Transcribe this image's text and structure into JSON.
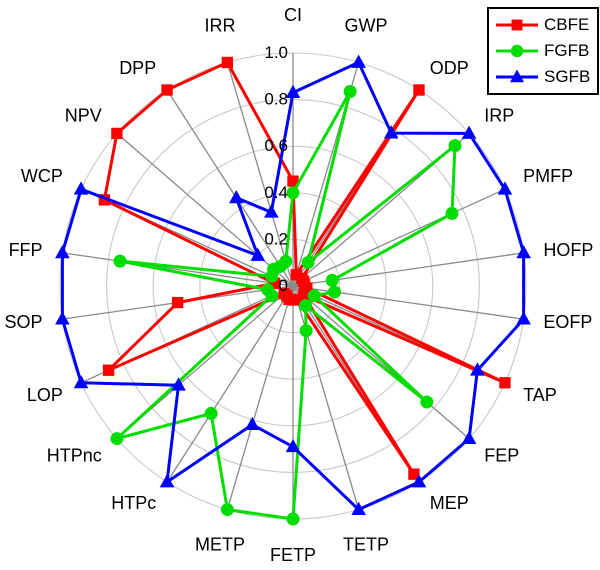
{
  "figure": {
    "background": "#ffffff",
    "grid_color": "#c9c9c9",
    "spoke_color": "#8a8a8a",
    "text_color": "#000000"
  },
  "legend": {
    "position": "top-right",
    "entries": [
      {
        "label": "CBFE",
        "color": "#ff0000",
        "marker": "square"
      },
      {
        "label": "FGFB",
        "color": "#00dd00",
        "marker": "circle"
      },
      {
        "label": "SGFB",
        "color": "#0000ff",
        "marker": "triangle"
      }
    ]
  },
  "chart_data": {
    "type": "radar",
    "title": "",
    "categories": [
      "CI",
      "GWP",
      "ODP",
      "IRP",
      "PMFP",
      "HOFP",
      "EOFP",
      "TAP",
      "FEP",
      "MEP",
      "TETP",
      "FETP",
      "METP",
      "HTPc",
      "HTPnc",
      "LOP",
      "SOP",
      "FFP",
      "WCP",
      "NPV",
      "DPP",
      "IRR"
    ],
    "series": [
      {
        "name": "CBFE",
        "marker": "square",
        "color": "#ff0000",
        "values": [
          0.45,
          0.05,
          1.0,
          0.05,
          0.05,
          0.05,
          0.06,
          1.0,
          0.06,
          0.96,
          0.06,
          0.06,
          0.06,
          0.05,
          0.05,
          0.87,
          0.5,
          0.08,
          0.89,
          1.0,
          1.0,
          1.0
        ]
      },
      {
        "name": "FGFB",
        "marker": "circle",
        "color": "#00dd00",
        "values": [
          0.4,
          0.87,
          0.12,
          0.92,
          0.75,
          0.17,
          0.18,
          0.1,
          0.76,
          0.1,
          0.2,
          1.0,
          1.0,
          0.65,
          1.0,
          0.1,
          0.11,
          0.75,
          0.1,
          0.11,
          0.1,
          0.11
        ]
      },
      {
        "name": "SGFB",
        "marker": "triangle",
        "color": "#0000ff",
        "values": [
          0.83,
          1.0,
          0.78,
          1.0,
          1.0,
          1.0,
          1.0,
          0.87,
          1.0,
          1.0,
          1.0,
          0.69,
          0.62,
          1.0,
          0.65,
          1.0,
          1.0,
          1.0,
          1.0,
          0.2,
          0.45,
          0.33
        ]
      }
    ],
    "ticks": [
      0,
      0.2,
      0.4,
      0.6,
      0.8,
      1.0
    ],
    "tick_labels": [
      "0",
      "0.2",
      "0.4",
      "0.6",
      "0.8",
      "1.0"
    ],
    "rlim": [
      0,
      1
    ],
    "grid": true,
    "legend_position": "top-right"
  }
}
